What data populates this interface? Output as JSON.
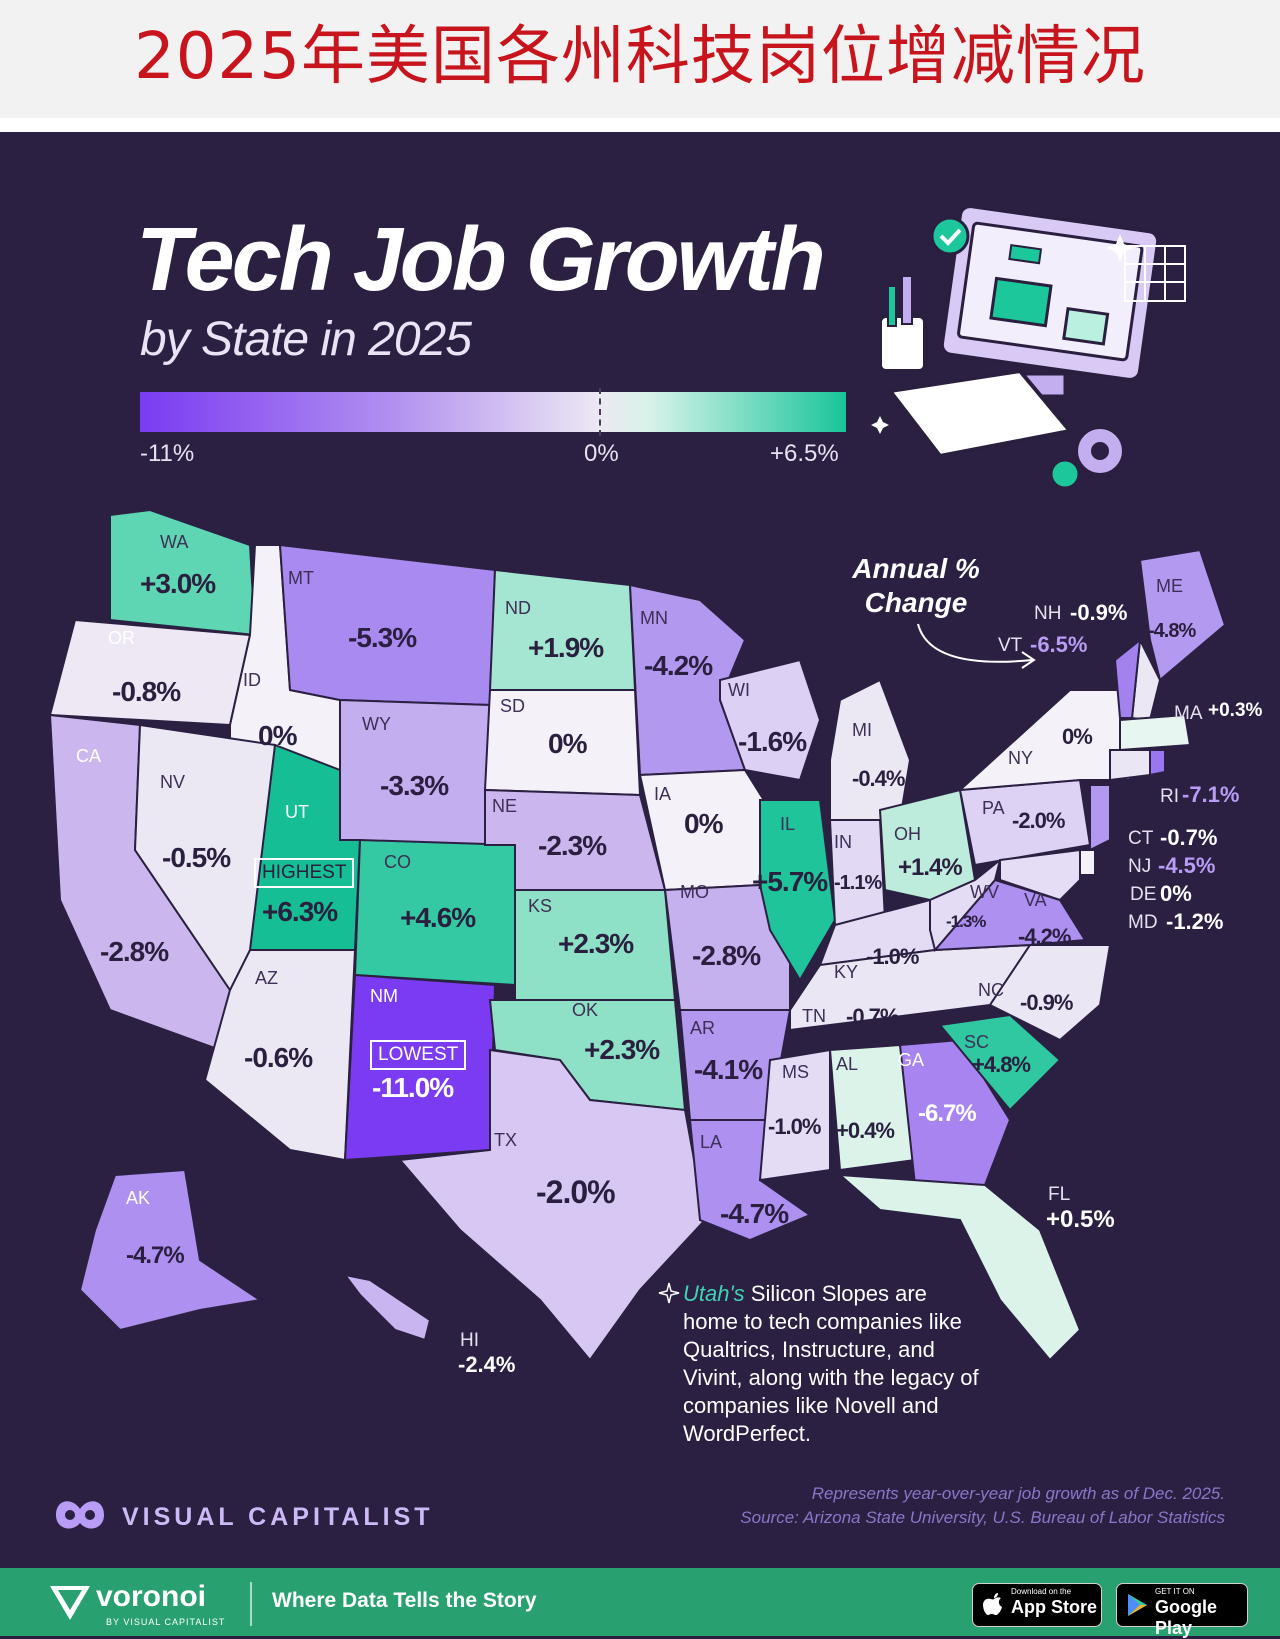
{
  "banner": {
    "title": "2025年美国各州科技岗位增减情况"
  },
  "header": {
    "title": "Tech Job Growth",
    "subtitle": "by State in 2025"
  },
  "legend": {
    "min": "-11%",
    "mid": "0%",
    "max": "+6.5%"
  },
  "annotation": {
    "annual_change": "Annual % Change",
    "highest_tag": "HIGHEST",
    "lowest_tag": "LOWEST"
  },
  "states": {
    "WA": "+3.0%",
    "OR": "-0.8%",
    "CA": "-2.8%",
    "ID": "0%",
    "NV": "-0.5%",
    "MT": "-5.3%",
    "WY": "-3.3%",
    "UT": "+6.3%",
    "AZ": "-0.6%",
    "CO": "+4.6%",
    "NM": "-11.0%",
    "ND": "+1.9%",
    "SD": "0%",
    "NE": "-2.3%",
    "KS": "+2.3%",
    "OK": "+2.3%",
    "TX": "-2.0%",
    "MN": "-4.2%",
    "IA": "0%",
    "MO": "-2.8%",
    "AR": "-4.1%",
    "LA": "-4.7%",
    "WI": "-1.6%",
    "IL": "+5.7%",
    "MI": "-0.4%",
    "IN": "-1.1%",
    "OH": "+1.4%",
    "KY": "-1.0%",
    "TN": "-0.7%",
    "MS": "-1.0%",
    "AL": "+0.4%",
    "GA": "-6.7%",
    "FL": "+0.5%",
    "SC": "+4.8%",
    "NC": "-0.9%",
    "VA": "-4.2%",
    "WV": "-1.3%",
    "PA": "-2.0%",
    "NY": "0%",
    "ME": "-4.8%",
    "NH": "-0.9%",
    "VT": "-6.5%",
    "MA": "+0.3%",
    "RI": "-7.1%",
    "CT": "-0.7%",
    "NJ": "-4.5%",
    "DE": "0%",
    "MD": "-1.2%",
    "AK": "-4.7%",
    "HI": "-2.4%"
  },
  "note": {
    "highlight": "Utah's",
    "text": " Silicon Slopes are home to tech companies like Qualtrics, Instructure, and Vivint, along with the legacy of companies like Novell and WordPerfect."
  },
  "source": {
    "line1": "Represents year-over-year job growth as of Dec. 2025.",
    "line2": "Source: Arizona State University, U.S. Bureau of Labor Statistics"
  },
  "brand": {
    "name": "VISUAL CAPITALIST"
  },
  "footer": {
    "logo": "voronoi",
    "byline": "BY VISUAL CAPITALIST",
    "tagline": "Where Data Tells the Story",
    "appstore_small": "Download on the",
    "appstore_big": "App Store",
    "googleplay_small": "GET IT ON",
    "googleplay_big": "Google Play"
  },
  "colors": {
    "min": "#7a3bf2",
    "mid": "#ece8f3",
    "max": "#19c59a",
    "background": "#2b2042",
    "banner_text": "#c8151d",
    "footer": "#29a06f"
  }
}
